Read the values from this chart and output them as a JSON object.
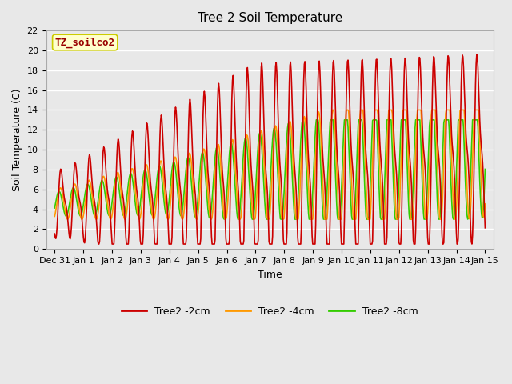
{
  "title": "Tree 2 Soil Temperature",
  "xlabel": "Time",
  "ylabel": "Soil Temperature (C)",
  "annotation_text": "TZ_soilco2",
  "ylim": [
    0,
    22
  ],
  "background_color": "#e8e8e8",
  "plot_bg_color": "#e8e8e8",
  "grid_color": "white",
  "series": {
    "2cm": {
      "color": "#cc0000",
      "label": "Tree2 -2cm",
      "lw": 1.2
    },
    "4cm": {
      "color": "#ff9900",
      "label": "Tree2 -4cm",
      "lw": 1.2
    },
    "8cm": {
      "color": "#33cc00",
      "label": "Tree2 -8cm",
      "lw": 1.2
    }
  },
  "xtick_labels": [
    "Dec 31",
    "Jan 1",
    "Jan 2",
    "Jan 3",
    "Jan 4",
    "Jan 5",
    "Jan 6",
    "Jan 7",
    "Jan 8",
    "Jan 9",
    "Jan 10",
    "Jan 11",
    "Jan 12",
    "Jan 13",
    "Jan 14",
    "Jan 15"
  ],
  "xtick_positions": [
    0,
    1,
    2,
    3,
    4,
    5,
    6,
    7,
    8,
    9,
    10,
    11,
    12,
    13,
    14,
    15
  ],
  "ytick_positions": [
    0,
    2,
    4,
    6,
    8,
    10,
    12,
    14,
    16,
    18,
    20,
    22
  ]
}
